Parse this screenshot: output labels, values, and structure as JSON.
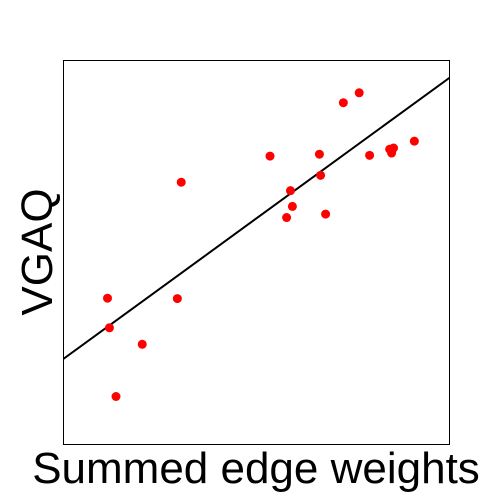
{
  "chart_data": {
    "type": "scatter",
    "xlabel": "Summed edge weights",
    "ylabel": "VGAQ",
    "xlim": [
      0,
      100
    ],
    "ylim": [
      0,
      100
    ],
    "grid": false,
    "ticks_visible": false,
    "colors": {
      "points": "#ff0000",
      "trendline": "#000000",
      "frame": "#000000"
    },
    "series": [
      {
        "x": [
          11.4,
          11.9,
          13.6,
          20.4,
          29.5,
          30.5,
          53.5,
          57.8,
          58.8,
          59.3,
          66.3,
          66.6,
          67.9,
          72.5,
          76.6,
          79.3,
          84.5,
          85.0,
          85.5,
          90.9
        ],
        "y": [
          38.1,
          30.4,
          12.5,
          26.1,
          38.0,
          68.3,
          75.1,
          59.1,
          66.1,
          62.0,
          75.6,
          70.1,
          60.0,
          89.0,
          91.6,
          75.3,
          76.9,
          75.9,
          77.2,
          79.0
        ]
      }
    ],
    "trendline": {
      "x": [
        0,
        100
      ],
      "y": [
        22.3,
        95.5
      ]
    }
  }
}
